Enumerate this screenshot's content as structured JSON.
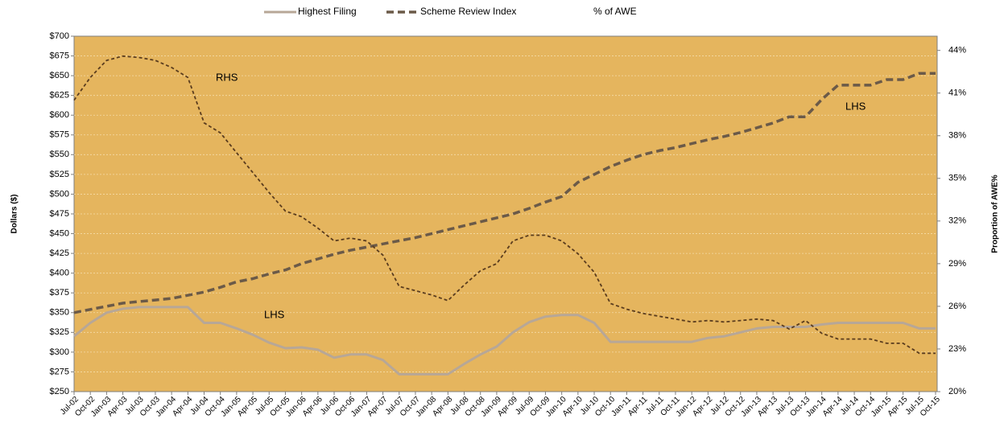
{
  "chart_data": {
    "type": "line",
    "y_label": "Dollars ($)",
    "y2_label": "Proportion of AWE%",
    "annotations": [
      "RHS",
      "LHS",
      "LHS"
    ],
    "categories": [
      "Jul-02",
      "Oct-02",
      "Jan-03",
      "Apr-03",
      "Jul-03",
      "Oct-03",
      "Jan-04",
      "Apr-04",
      "Jul-04",
      "Oct-04",
      "Jan-05",
      "Apr-05",
      "Jul-05",
      "Oct-05",
      "Jan-06",
      "Apr-06",
      "Jul-06",
      "Oct-06",
      "Jan-07",
      "Apr-07",
      "Jul-07",
      "Oct-07",
      "Jan-08",
      "Apr-08",
      "Jul-08",
      "Oct-08",
      "Jan-09",
      "Apr-09",
      "Jul-09",
      "Oct-09",
      "Jan-10",
      "Apr-10",
      "Jul-10",
      "Oct-10",
      "Jan-11",
      "Apr-11",
      "Jul-11",
      "Oct-11",
      "Jan-12",
      "Apr-12",
      "Jul-12",
      "Oct-12",
      "Jan-13",
      "Apr-13",
      "Jul-13",
      "Oct-13",
      "Jan-14",
      "Apr-14",
      "Jul-14",
      "Oct-14",
      "Jan-15",
      "Apr-15",
      "Jul-15",
      "Oct-15"
    ],
    "series": [
      {
        "name": "Highest Filing",
        "color": "#b7a797",
        "values": [
          320,
          337,
          350,
          355,
          357,
          357,
          357,
          357,
          337,
          337,
          330,
          322,
          312,
          305,
          306,
          303,
          293,
          297,
          297,
          290,
          272,
          272,
          272,
          272,
          285,
          297,
          307,
          325,
          338,
          345,
          347,
          347,
          337,
          313,
          313,
          313,
          313,
          313,
          313,
          318,
          320,
          325,
          330,
          332,
          332,
          332,
          335,
          337,
          337,
          337,
          337,
          337,
          330,
          330
        ]
      },
      {
        "name": "Scheme Review Index",
        "color": "#6b5a48",
        "values": [
          350,
          354,
          358,
          362,
          364,
          366,
          368,
          372,
          376,
          382,
          389,
          393,
          399,
          404,
          412,
          418,
          424,
          429,
          433,
          437,
          441,
          445,
          450,
          455,
          460,
          465,
          470,
          475,
          482,
          490,
          497,
          515,
          525,
          535,
          543,
          550,
          555,
          559,
          564,
          569,
          573,
          578,
          584,
          590,
          598,
          598,
          620,
          638,
          638,
          638,
          645,
          645,
          653,
          653
        ]
      },
      {
        "name": "% of AWE",
        "color": "#5a3c1e",
        "axis": "y2",
        "values": [
          40.5,
          42.1,
          43.3,
          43.6,
          43.5,
          43.3,
          42.8,
          42.1,
          38.9,
          38.2,
          36.8,
          35.4,
          34.0,
          32.7,
          32.3,
          31.5,
          30.6,
          30.8,
          30.6,
          29.6,
          27.4,
          27.1,
          26.8,
          26.4,
          27.5,
          28.5,
          29.0,
          30.6,
          31.0,
          31.0,
          30.6,
          29.7,
          28.4,
          26.2,
          25.8,
          25.5,
          25.3,
          25.1,
          24.9,
          25.0,
          24.9,
          25.0,
          25.1,
          25.0,
          24.4,
          25.0,
          24.1,
          23.7,
          23.7,
          23.7,
          23.4,
          23.4,
          22.7,
          22.7
        ]
      }
    ],
    "ylim": [
      250,
      700
    ],
    "yticks": [
      {
        "value": 250,
        "label": "$250"
      },
      {
        "value": 275,
        "label": "$275"
      },
      {
        "value": 300,
        "label": "$300"
      },
      {
        "value": 325,
        "label": "$325"
      },
      {
        "value": 350,
        "label": "$350"
      },
      {
        "value": 375,
        "label": "$375"
      },
      {
        "value": 400,
        "label": "$400"
      },
      {
        "value": 425,
        "label": "$425"
      },
      {
        "value": 450,
        "label": "$450"
      },
      {
        "value": 475,
        "label": "$475"
      },
      {
        "value": 500,
        "label": "$500"
      },
      {
        "value": 525,
        "label": "$525"
      },
      {
        "value": 550,
        "label": "$550"
      },
      {
        "value": 575,
        "label": "$575"
      },
      {
        "value": 600,
        "label": "$600"
      },
      {
        "value": 625,
        "label": "$625"
      },
      {
        "value": 650,
        "label": "$650"
      },
      {
        "value": 675,
        "label": "$675"
      },
      {
        "value": 700,
        "label": "$700"
      }
    ],
    "y2lim": [
      20,
      45
    ],
    "y2ticks": [
      {
        "value": 20,
        "label": "20%"
      },
      {
        "value": 23,
        "label": "23%"
      },
      {
        "value": 26,
        "label": "26%"
      },
      {
        "value": 29,
        "label": "29%"
      },
      {
        "value": 32,
        "label": "32%"
      },
      {
        "value": 35,
        "label": "35%"
      },
      {
        "value": 38,
        "label": "38%"
      },
      {
        "value": 41,
        "label": "41%"
      },
      {
        "value": 44,
        "label": "44%"
      }
    ],
    "grid": true,
    "background": "#e5b55e"
  }
}
